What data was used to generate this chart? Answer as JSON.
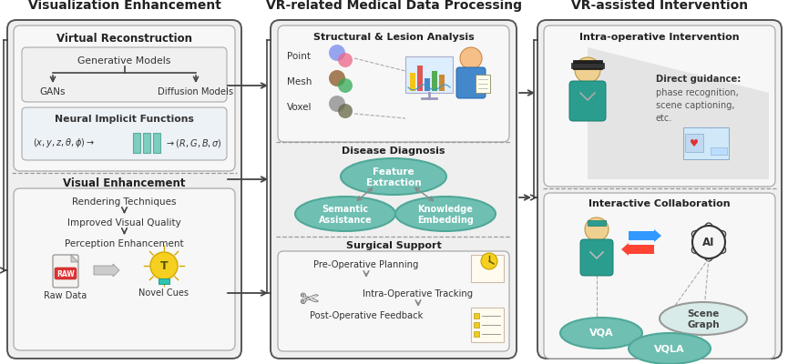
{
  "bg_color": "#ffffff",
  "panel_bg": "#efefef",
  "inner_bg": "#f7f7f7",
  "teal_fc": "#6fbfb2",
  "teal_ec": "#4fa898",
  "scene_graph_fc": "#d8ebe8",
  "scene_graph_ec": "#999999",
  "section_titles": {
    "left": "Visualization Enhancement",
    "middle": "VR-related Medical Data Processing",
    "right": "VR-assisted Intervention"
  },
  "left_sub1_title": "Virtual Reconstruction",
  "left_sub2_title": "Visual Enhancement",
  "mid_sub1_title": "Structural & Lesion Analysis",
  "mid_sub2_title": "Disease Diagnosis",
  "mid_sub3_title": "Surgical Support",
  "right_sub1_title": "Intra-operative Intervention",
  "right_sub2_title": "Interactive Collaboration",
  "outer_ec": "#555555",
  "inner_ec": "#aaaaaa",
  "text_dark": "#222222",
  "text_mid": "#333333",
  "text_light": "#555555",
  "arrow_color": "#444444",
  "dash_color": "#999999",
  "teal_bar1": "#7ec8bb",
  "teal_bar2": "#5aab9e"
}
